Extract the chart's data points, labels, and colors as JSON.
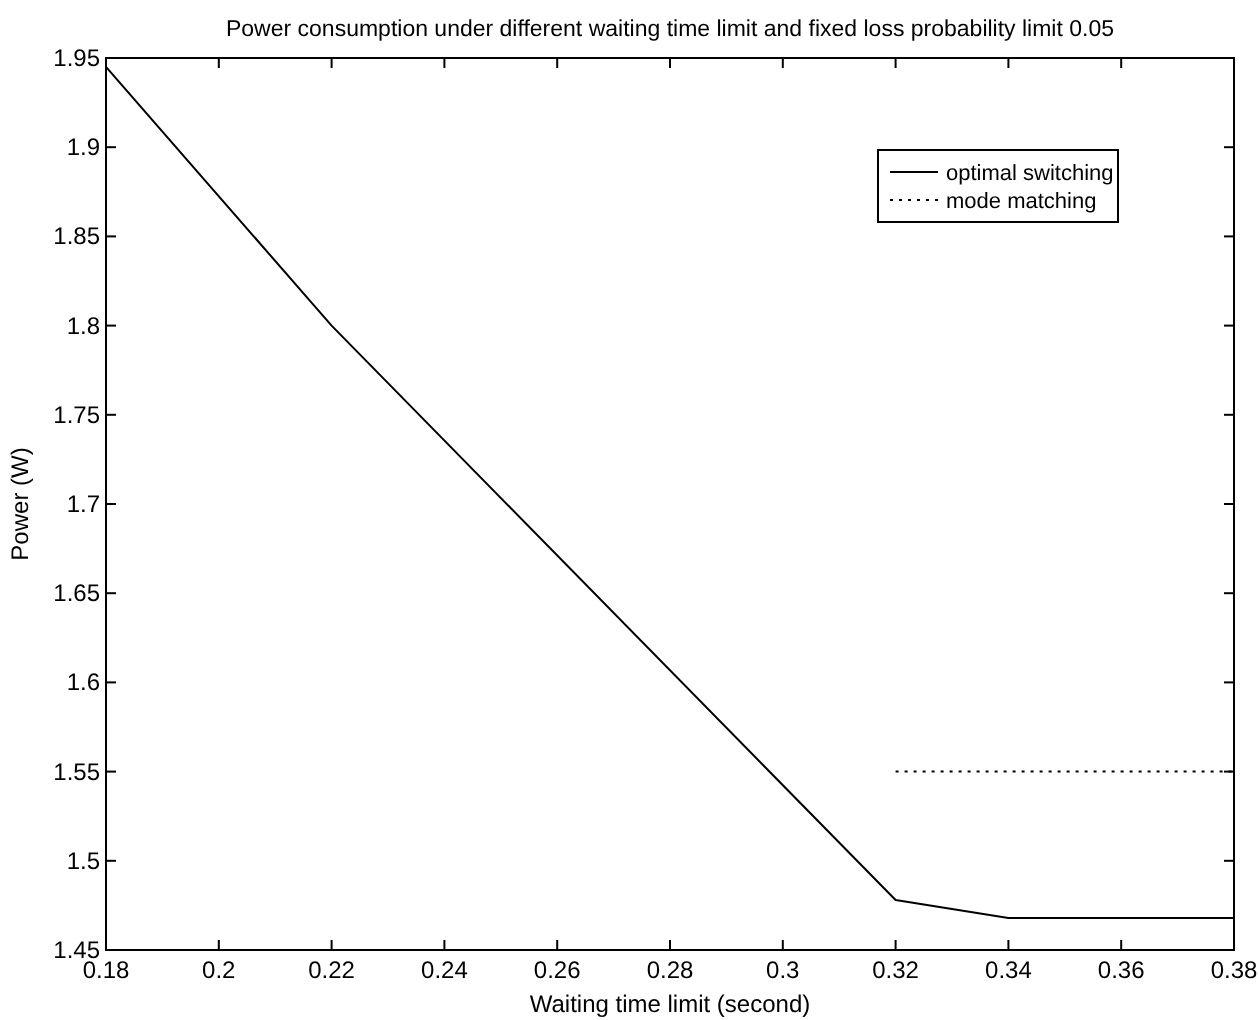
{
  "chart_data": {
    "type": "line",
    "title": "Power consumption under different waiting time limit and fixed loss probability limit 0.05",
    "xlabel": "Waiting time limit (second)",
    "ylabel": "Power (W)",
    "series": [
      {
        "name": "optimal switching",
        "color": "#000000",
        "line_style": "solid",
        "x": [
          0.18,
          0.22,
          0.32,
          0.34,
          0.38
        ],
        "values": [
          1.945,
          1.8,
          1.478,
          1.468,
          1.468
        ]
      },
      {
        "name": "mode matching",
        "color": "#000000",
        "line_style": "dotted",
        "x": [
          0.32,
          0.38
        ],
        "values": [
          1.55,
          1.55
        ]
      }
    ],
    "xlim": [
      0.18,
      0.38
    ],
    "xticks": [
      0.18,
      0.2,
      0.22,
      0.24,
      0.26,
      0.28,
      0.3,
      0.32,
      0.34,
      0.36,
      0.38
    ],
    "ylim": [
      1.45,
      1.95
    ],
    "yticks": [
      1.45,
      1.5,
      1.55,
      1.6,
      1.65,
      1.7,
      1.75,
      1.8,
      1.85,
      1.9,
      1.95
    ],
    "grid": false,
    "legend": "top right",
    "marker": "none"
  }
}
